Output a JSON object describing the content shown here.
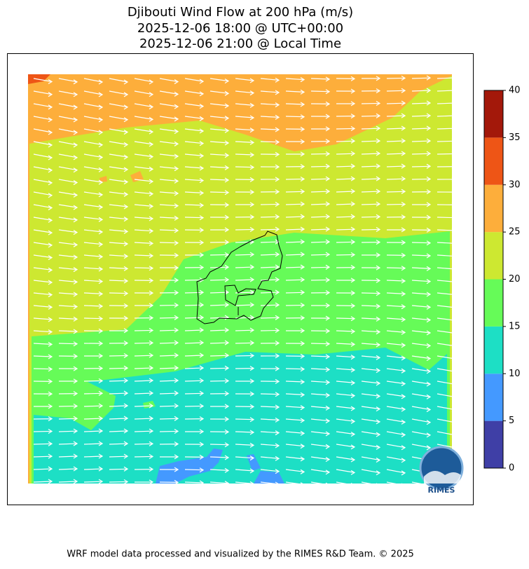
{
  "title": [
    "Djibouti Wind Flow at 200 hPa (m/s)",
    "2025-12-06 18:00 @ UTC+00:00",
    "2025-12-06 21:00 @ Local Time"
  ],
  "colorbar": {
    "ticks": [
      0,
      5,
      10,
      15,
      20,
      25,
      30,
      35,
      40
    ],
    "colors": [
      "#3f3fa6",
      "#4499ff",
      "#1ddfc5",
      "#66fb58",
      "#cde831",
      "#fdae3b",
      "#ee5516",
      "#a3180a"
    ]
  },
  "logo": "RIMES",
  "footer": "WRF model data processed and visualized by the RIMES R&D Team. © 2025"
}
